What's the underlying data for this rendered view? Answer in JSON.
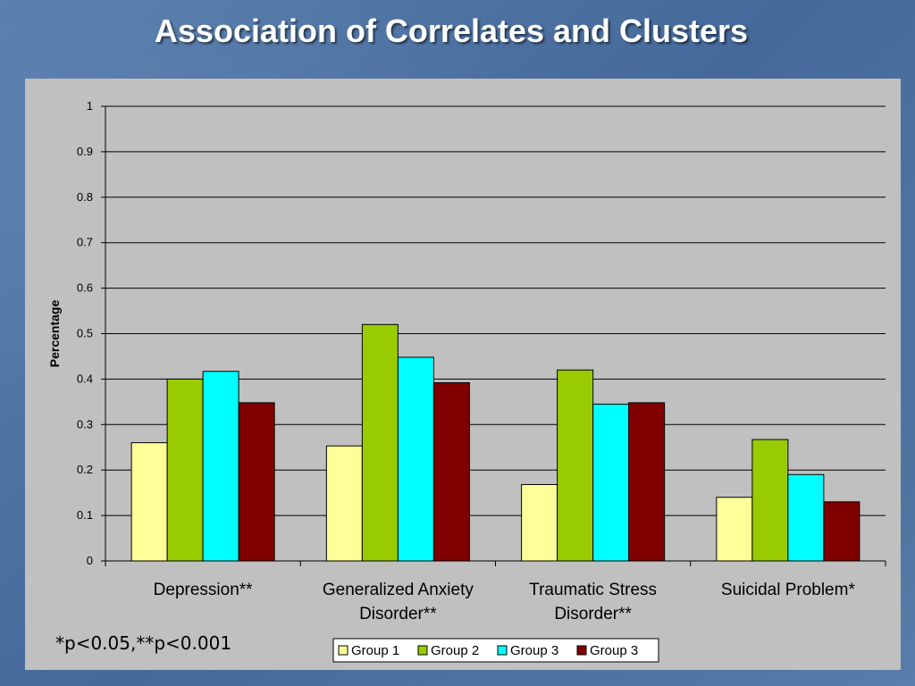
{
  "slide": {
    "title": "Association of Correlates and Clusters",
    "footnote": "*p<0.05,**p<0.001"
  },
  "chart_data": {
    "type": "bar",
    "title": "",
    "xlabel": "",
    "ylabel": "Percentage",
    "ylim": [
      0,
      1
    ],
    "yticks": [
      "0",
      "0.1",
      "0.2",
      "0.3",
      "0.4",
      "0.5",
      "0.6",
      "0.7",
      "0.8",
      "0.9",
      "1"
    ],
    "grid": true,
    "legend_position": "bottom",
    "categories": [
      [
        "Depression**"
      ],
      [
        "Generalized Anxiety",
        "Disorder**"
      ],
      [
        "Traumatic Stress",
        "Disorder**"
      ],
      [
        "Suicidal Problem*"
      ]
    ],
    "series": [
      {
        "name": "Group 1",
        "color": "#ffff99",
        "values": [
          0.26,
          0.253,
          0.168,
          0.14
        ]
      },
      {
        "name": "Group 2",
        "color": "#99cc00",
        "values": [
          0.4,
          0.52,
          0.42,
          0.267
        ]
      },
      {
        "name": "Group 3",
        "color": "#00ffff",
        "values": [
          0.417,
          0.448,
          0.345,
          0.19
        ]
      },
      {
        "name": "Group 3",
        "color": "#800000",
        "values": [
          0.348,
          0.392,
          0.348,
          0.13
        ]
      }
    ]
  }
}
